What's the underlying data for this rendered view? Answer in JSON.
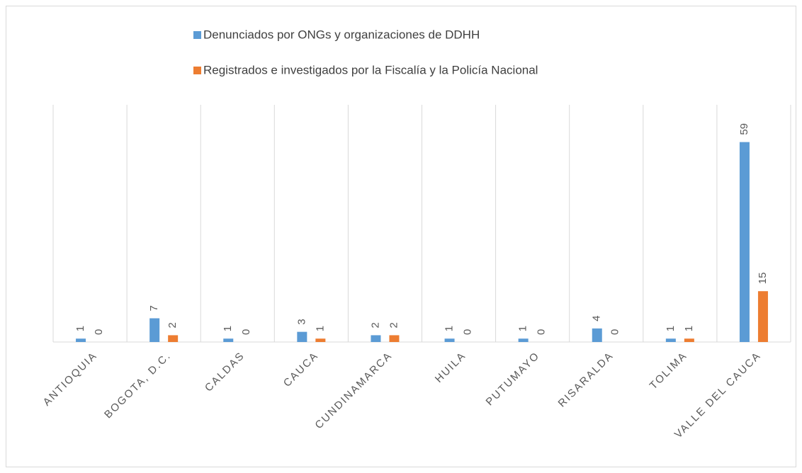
{
  "chart_data": {
    "type": "bar",
    "categories": [
      "ANTIOQUIA",
      "BOGOTA, D.C.",
      "CALDAS",
      "CAUCA",
      "CUNDINAMARCA",
      "HUILA",
      "PUTUMAYO",
      "RISARALDA",
      "TOLIMA",
      "VALLE DEL CAUCA"
    ],
    "series": [
      {
        "name": "Denunciados por ONGs y organizaciones de DDHH",
        "color": "#5b9bd5",
        "values": [
          1,
          7,
          1,
          3,
          2,
          1,
          1,
          4,
          1,
          59
        ]
      },
      {
        "name": "Registrados e investigados por la Fiscalía y la Policía Nacional",
        "color": "#ed7d31",
        "values": [
          0,
          2,
          0,
          1,
          2,
          0,
          0,
          0,
          1,
          15
        ]
      }
    ],
    "ylim": [
      0,
      70
    ],
    "legend": "top"
  }
}
